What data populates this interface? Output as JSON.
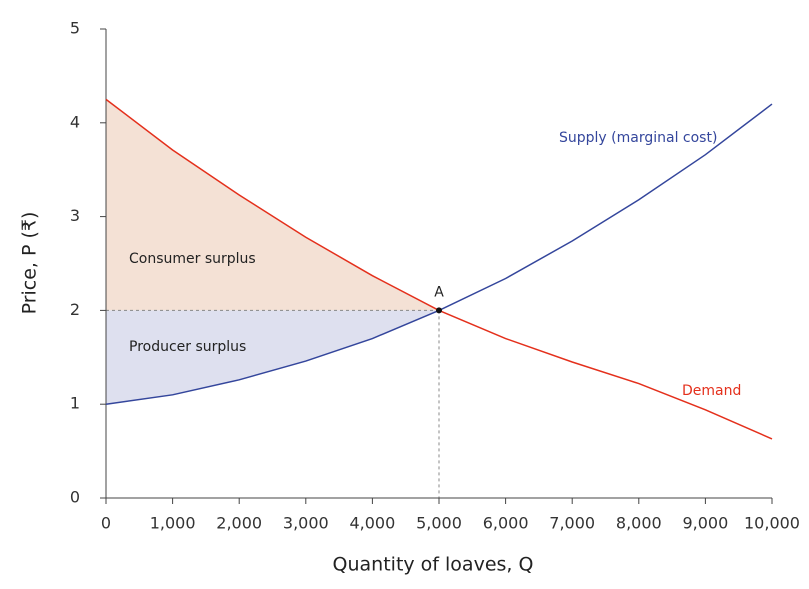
{
  "chart_data": {
    "type": "line",
    "x_label": "Quantity of loaves, Q",
    "y_label": "Price, P (₹)",
    "x": [
      0,
      1000,
      2000,
      3000,
      4000,
      5000,
      6000,
      7000,
      8000,
      9000,
      10000
    ],
    "series": [
      {
        "name": "Supply (marginal cost)",
        "color": "#34469c",
        "values": [
          1,
          1.1,
          1.26,
          1.46,
          1.7,
          2,
          2.34,
          2.74,
          3.18,
          3.66,
          4.2
        ]
      },
      {
        "name": "Demand",
        "color": "#e4301c",
        "values": [
          4.25,
          3.71,
          3.23,
          2.78,
          2.37,
          2,
          1.7,
          1.45,
          1.22,
          0.94,
          0.63
        ]
      }
    ],
    "areas": [
      {
        "name": "Consumer surplus",
        "color": "#f4e1d5",
        "series": 1
      },
      {
        "name": "Producer surplus",
        "color": "#dee0ef",
        "series": 0
      }
    ],
    "equilibrium": {
      "label": "A",
      "x": 5000,
      "y": 2
    },
    "xlim": [
      0,
      10000
    ],
    "ylim": [
      0,
      5
    ],
    "xticks": [
      0,
      {
        "value": 1000,
        "label": "1,000"
      },
      {
        "value": 2000,
        "label": "2,000"
      },
      {
        "value": 3000,
        "label": "3,000"
      },
      {
        "value": 4000,
        "label": "4,000"
      },
      {
        "value": 5000,
        "label": "5,000"
      },
      {
        "value": 6000,
        "label": "6,000"
      },
      {
        "value": 7000,
        "label": "7,000"
      },
      {
        "value": 8000,
        "label": "8,000"
      },
      {
        "value": 9000,
        "label": "9,000"
      },
      {
        "value": 10000,
        "label": "10,000"
      }
    ],
    "yticks": [
      0,
      1,
      2,
      3,
      4,
      5
    ],
    "grid": false
  }
}
